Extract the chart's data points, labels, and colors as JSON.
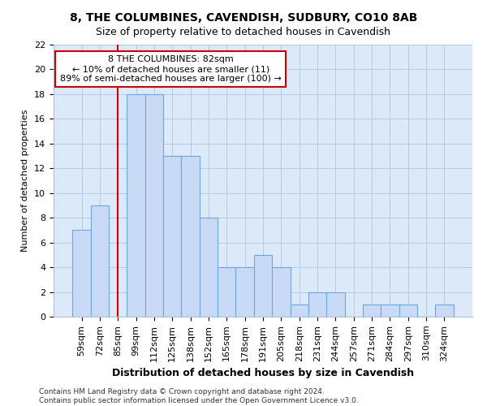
{
  "title1": "8, THE COLUMBINES, CAVENDISH, SUDBURY, CO10 8AB",
  "title2": "Size of property relative to detached houses in Cavendish",
  "xlabel": "Distribution of detached houses by size in Cavendish",
  "ylabel": "Number of detached properties",
  "categories": [
    "59sqm",
    "72sqm",
    "85sqm",
    "99sqm",
    "112sqm",
    "125sqm",
    "138sqm",
    "152sqm",
    "165sqm",
    "178sqm",
    "191sqm",
    "205sqm",
    "218sqm",
    "231sqm",
    "244sqm",
    "257sqm",
    "271sqm",
    "284sqm",
    "297sqm",
    "310sqm",
    "324sqm"
  ],
  "values": [
    7,
    9,
    0,
    18,
    18,
    13,
    13,
    8,
    4,
    4,
    5,
    4,
    1,
    2,
    2,
    0,
    1,
    1,
    1,
    0,
    1
  ],
  "bar_color": "#c8daf5",
  "bar_edge_color": "#6fa8d8",
  "vline_index": 2,
  "vline_color": "#cc0000",
  "annotation_text": "8 THE COLUMBINES: 82sqm\n← 10% of detached houses are smaller (11)\n89% of semi-detached houses are larger (100) →",
  "annotation_box_facecolor": "#ffffff",
  "annotation_box_edgecolor": "#cc0000",
  "ylim": [
    0,
    22
  ],
  "yticks": [
    0,
    2,
    4,
    6,
    8,
    10,
    12,
    14,
    16,
    18,
    20,
    22
  ],
  "footer1": "Contains HM Land Registry data © Crown copyright and database right 2024.",
  "footer2": "Contains public sector information licensed under the Open Government Licence v3.0.",
  "bg_color": "#ffffff",
  "plot_bg_color": "#dce9f8",
  "grid_color": "#b0c4de",
  "title1_fontsize": 10,
  "title2_fontsize": 9,
  "xlabel_fontsize": 9,
  "ylabel_fontsize": 8,
  "tick_fontsize": 8,
  "annot_fontsize": 8,
  "footer_fontsize": 6.5
}
